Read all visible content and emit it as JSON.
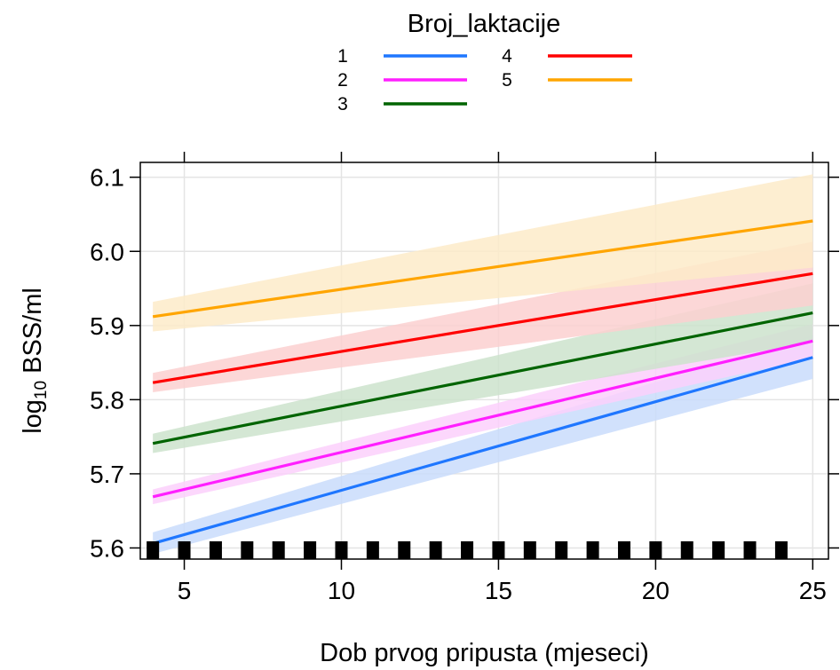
{
  "chart_data": {
    "type": "line",
    "title": "",
    "xlabel": "Dob prvog pripusta (mjeseci)",
    "ylabel_main": "log",
    "ylabel_sub": "10",
    "ylabel_rest": " BSS/ml",
    "xlim": [
      3.6,
      25.5
    ],
    "ylim": [
      5.585,
      6.12
    ],
    "xticks": [
      5,
      10,
      15,
      20,
      25
    ],
    "yticks": [
      5.6,
      5.7,
      5.8,
      5.9,
      6.0,
      6.1
    ],
    "ytick_labels": [
      "5.6",
      "5.7",
      "5.8",
      "5.9",
      "6.0",
      "6.1"
    ],
    "grid": true,
    "legend_title": "Broj_laktacije",
    "legend_position": "top",
    "x_range": [
      4,
      25
    ],
    "series": [
      {
        "name": "1",
        "color": "#1f77ff",
        "band": "#c9dcfb",
        "x": [
          4,
          25
        ],
        "y": [
          5.606,
          5.857
        ],
        "lower": [
          5.592,
          5.828
        ],
        "upper": [
          5.621,
          5.887
        ]
      },
      {
        "name": "2",
        "color": "#ff1fff",
        "band": "#fbd0fb",
        "x": [
          4,
          25
        ],
        "y": [
          5.669,
          5.879
        ],
        "lower": [
          5.659,
          5.856
        ],
        "upper": [
          5.679,
          5.902
        ]
      },
      {
        "name": "3",
        "color": "#006400",
        "band": "#cde3cd",
        "x": [
          4,
          25
        ],
        "y": [
          5.741,
          5.917
        ],
        "lower": [
          5.728,
          5.877
        ],
        "upper": [
          5.754,
          5.957
        ]
      },
      {
        "name": "4",
        "color": "#ff0000",
        "band": "#fbd0d0",
        "x": [
          4,
          25
        ],
        "y": [
          5.823,
          5.97
        ],
        "lower": [
          5.81,
          5.927
        ],
        "upper": [
          5.836,
          6.013
        ]
      },
      {
        "name": "5",
        "color": "#ffa500",
        "band": "#fdebc9",
        "x": [
          4,
          25
        ],
        "y": [
          5.912,
          6.041
        ],
        "lower": [
          5.892,
          5.978
        ],
        "upper": [
          5.932,
          6.104
        ]
      }
    ],
    "rug_x": [
      4,
      5,
      6,
      7,
      8,
      9,
      10,
      11,
      12,
      13,
      14,
      15,
      16,
      17,
      18,
      19,
      20,
      21,
      22,
      23,
      24
    ]
  }
}
